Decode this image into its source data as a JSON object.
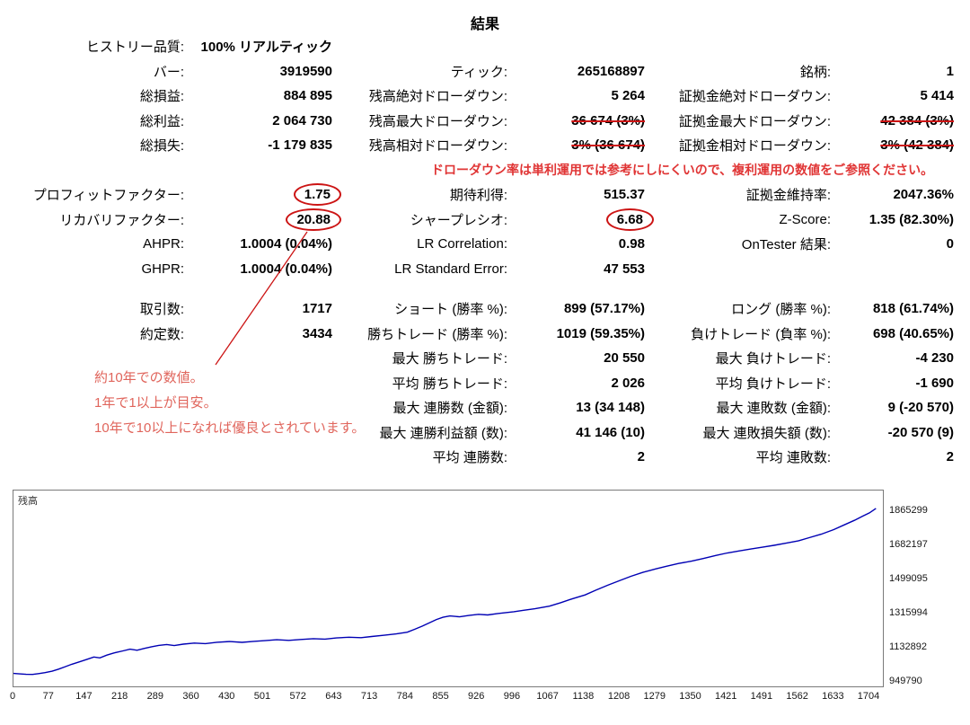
{
  "title": "結果",
  "note_drawdown": "ドローダウン率は単利運用では参考にしにくいので、複利運用の数値をご参照ください。",
  "annotation": {
    "lines": [
      "約10年での数値。",
      "1年で1以上が目安。",
      "10年で10以上になれば優良とされています。"
    ]
  },
  "colors": {
    "accent_red": "#cc1414",
    "note_red": "#e03535",
    "annotation_red": "#e0655c",
    "curve_blue": "#0000b4",
    "border_gray": "#7a7a7a"
  },
  "stats_rows": [
    {
      "cells": [
        {
          "label": "ヒストリー品質:",
          "value": "100% リアルティック"
        },
        null,
        null
      ]
    },
    {
      "cells": [
        {
          "label": "バー:",
          "value": "3919590"
        },
        {
          "label": "ティック:",
          "value": "265168897"
        },
        {
          "label": "銘柄:",
          "value": "1"
        }
      ]
    },
    {
      "cells": [
        {
          "label": "総損益:",
          "value": "884 895"
        },
        {
          "label": "残高絶対ドローダウン:",
          "value": "5 264"
        },
        {
          "label": "証拠金絶対ドローダウン:",
          "value": "5 414"
        }
      ]
    },
    {
      "cells": [
        {
          "label": "総利益:",
          "value": "2 064 730"
        },
        {
          "label": "残高最大ドローダウン:",
          "value": "36 674 (3%)",
          "strike": true
        },
        {
          "label": "証拠金最大ドローダウン:",
          "value": "42 384 (3%)",
          "strike": true
        }
      ]
    },
    {
      "cells": [
        {
          "label": "総損失:",
          "value": "-1 179 835"
        },
        {
          "label": "残高相対ドローダウン:",
          "value": "3% (36 674)",
          "strike": true
        },
        {
          "label": "証拠金相対ドローダウン:",
          "value": "3% (42 384)",
          "strike": true
        }
      ]
    },
    {
      "type": "note"
    },
    {
      "cells": [
        {
          "label": "プロフィットファクター:",
          "value": "1.75",
          "circle": true
        },
        {
          "label": "期待利得:",
          "value": "515.37"
        },
        {
          "label": "証拠金維持率:",
          "value": "2047.36%"
        }
      ]
    },
    {
      "cells": [
        {
          "label": "リカバリファクター:",
          "value": "20.88",
          "circle": true
        },
        {
          "label": "シャープレシオ:",
          "value": "6.68",
          "circle": true
        },
        {
          "label": "Z-Score:",
          "value": "1.35 (82.30%)"
        }
      ]
    },
    {
      "cells": [
        {
          "label": "AHPR:",
          "value": "1.0004 (0.04%)"
        },
        {
          "label": "LR Correlation:",
          "value": "0.98"
        },
        {
          "label": "OnTester 結果:",
          "value": "0"
        }
      ]
    },
    {
      "cells": [
        {
          "label": "GHPR:",
          "value": "1.0004 (0.04%)"
        },
        {
          "label": "LR Standard Error:",
          "value": "47 553"
        },
        null
      ]
    },
    {
      "type": "spacer"
    },
    {
      "cells": [
        {
          "label": "取引数:",
          "value": "1717"
        },
        {
          "label": "ショート (勝率 %):",
          "value": "899 (57.17%)"
        },
        {
          "label": "ロング (勝率 %):",
          "value": "818 (61.74%)"
        }
      ]
    },
    {
      "cells": [
        {
          "label": "約定数:",
          "value": "3434"
        },
        {
          "label": "勝ちトレード (勝率 %):",
          "value": "1019 (59.35%)"
        },
        {
          "label": "負けトレード (負率 %):",
          "value": "698 (40.65%)"
        }
      ]
    },
    {
      "cells": [
        null,
        {
          "label": "最大 勝ちトレード:",
          "value": "20 550"
        },
        {
          "label": "最大 負けトレード:",
          "value": "-4 230"
        }
      ]
    },
    {
      "cells": [
        null,
        {
          "label": "平均 勝ちトレード:",
          "value": "2 026"
        },
        {
          "label": "平均 負けトレード:",
          "value": "-1 690"
        }
      ]
    },
    {
      "cells": [
        null,
        {
          "label": "最大 連勝数 (金額):",
          "value": "13 (34 148)"
        },
        {
          "label": "最大 連敗数 (金額):",
          "value": "9 (-20 570)"
        }
      ]
    },
    {
      "cells": [
        null,
        {
          "label": "最大 連勝利益額 (数):",
          "value": "41 146 (10)"
        },
        {
          "label": "最大 連敗損失額 (数):",
          "value": "-20 570 (9)"
        }
      ]
    },
    {
      "cells": [
        null,
        {
          "label": "平均 連勝数:",
          "value": "2"
        },
        {
          "label": "平均 連敗数:",
          "value": "2"
        }
      ]
    }
  ],
  "chart_data": {
    "type": "line",
    "title": "残高",
    "series_name": "残高",
    "x_ticks": [
      0,
      77,
      147,
      218,
      289,
      360,
      430,
      501,
      572,
      643,
      713,
      784,
      855,
      926,
      996,
      1067,
      1138,
      1208,
      1279,
      1350,
      1421,
      1491,
      1562,
      1633,
      1704
    ],
    "y_ticks": [
      1865299,
      1682197,
      1499095,
      1315994,
      1132892,
      949790
    ],
    "xlim": [
      0,
      1735
    ],
    "ylim": [
      949790,
      1940000
    ],
    "grid": false,
    "points": [
      [
        0,
        1000000
      ],
      [
        12,
        997500
      ],
      [
        25,
        995200
      ],
      [
        38,
        994700
      ],
      [
        50,
        999000
      ],
      [
        63,
        1004000
      ],
      [
        77,
        1012000
      ],
      [
        90,
        1023000
      ],
      [
        103,
        1036000
      ],
      [
        116,
        1049000
      ],
      [
        130,
        1061000
      ],
      [
        147,
        1076000
      ],
      [
        160,
        1088000
      ],
      [
        172,
        1083500
      ],
      [
        186,
        1098000
      ],
      [
        200,
        1110000
      ],
      [
        218,
        1121000
      ],
      [
        232,
        1130000
      ],
      [
        246,
        1124000
      ],
      [
        260,
        1134000
      ],
      [
        275,
        1143000
      ],
      [
        289,
        1150000
      ],
      [
        305,
        1155000
      ],
      [
        320,
        1149500
      ],
      [
        338,
        1157000
      ],
      [
        360,
        1163000
      ],
      [
        382,
        1160000
      ],
      [
        405,
        1167000
      ],
      [
        430,
        1171000
      ],
      [
        455,
        1166500
      ],
      [
        478,
        1172000
      ],
      [
        501,
        1176000
      ],
      [
        524,
        1180500
      ],
      [
        548,
        1177000
      ],
      [
        572,
        1182000
      ],
      [
        597,
        1186500
      ],
      [
        620,
        1184000
      ],
      [
        643,
        1190000
      ],
      [
        668,
        1194000
      ],
      [
        692,
        1191500
      ],
      [
        713,
        1198000
      ],
      [
        738,
        1204500
      ],
      [
        762,
        1212000
      ],
      [
        784,
        1221000
      ],
      [
        799,
        1237000
      ],
      [
        814,
        1254000
      ],
      [
        828,
        1271000
      ],
      [
        842,
        1289000
      ],
      [
        855,
        1301000
      ],
      [
        869,
        1308500
      ],
      [
        888,
        1303500
      ],
      [
        908,
        1311500
      ],
      [
        926,
        1317000
      ],
      [
        944,
        1313500
      ],
      [
        964,
        1321500
      ],
      [
        980,
        1326000
      ],
      [
        996,
        1331000
      ],
      [
        1014,
        1338000
      ],
      [
        1038,
        1347000
      ],
      [
        1067,
        1361000
      ],
      [
        1089,
        1379000
      ],
      [
        1113,
        1401000
      ],
      [
        1138,
        1421000
      ],
      [
        1159,
        1446000
      ],
      [
        1183,
        1473000
      ],
      [
        1208,
        1499000
      ],
      [
        1229,
        1521000
      ],
      [
        1253,
        1542000
      ],
      [
        1279,
        1561000
      ],
      [
        1299,
        1574500
      ],
      [
        1324,
        1589500
      ],
      [
        1350,
        1602000
      ],
      [
        1374,
        1616500
      ],
      [
        1398,
        1632500
      ],
      [
        1421,
        1646000
      ],
      [
        1444,
        1656500
      ],
      [
        1468,
        1667500
      ],
      [
        1491,
        1677000
      ],
      [
        1514,
        1687000
      ],
      [
        1538,
        1698500
      ],
      [
        1562,
        1710500
      ],
      [
        1584,
        1728000
      ],
      [
        1608,
        1747000
      ],
      [
        1633,
        1771500
      ],
      [
        1654,
        1797000
      ],
      [
        1674,
        1821000
      ],
      [
        1691,
        1844000
      ],
      [
        1704,
        1861000
      ],
      [
        1717,
        1884895
      ]
    ]
  }
}
